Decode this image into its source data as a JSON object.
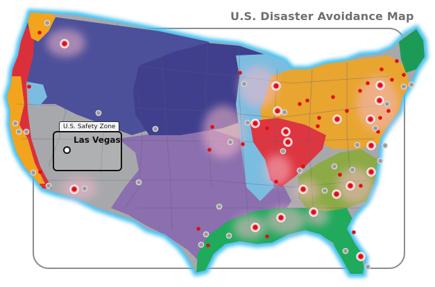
{
  "map": {
    "title": "U.S. Disaster Avoidance Map",
    "safety_zone_label": "U.S. Safety Zone",
    "city_label": "Las Vegas",
    "colors": {
      "northwest": "#4c4f9a",
      "midwest": "#3f3f8e",
      "plains": "#8b6fae",
      "west": "#a7a8ab",
      "coast_red": "#dc2f3c",
      "coast_orange": "#f3a41d",
      "ocean_glow": "#44c0f0",
      "greatlakes_blue": "#7bbde0",
      "ohio_orange": "#e8a530",
      "appalachia_red": "#dd3640",
      "southeast_olive": "#8caa45",
      "gulf_green": "#1faa5c",
      "florida_green": "#2bb05f",
      "northeast_green": "#1d9b56",
      "marker_red": "#e01010",
      "marker_gray": "#9a9a9a"
    }
  }
}
